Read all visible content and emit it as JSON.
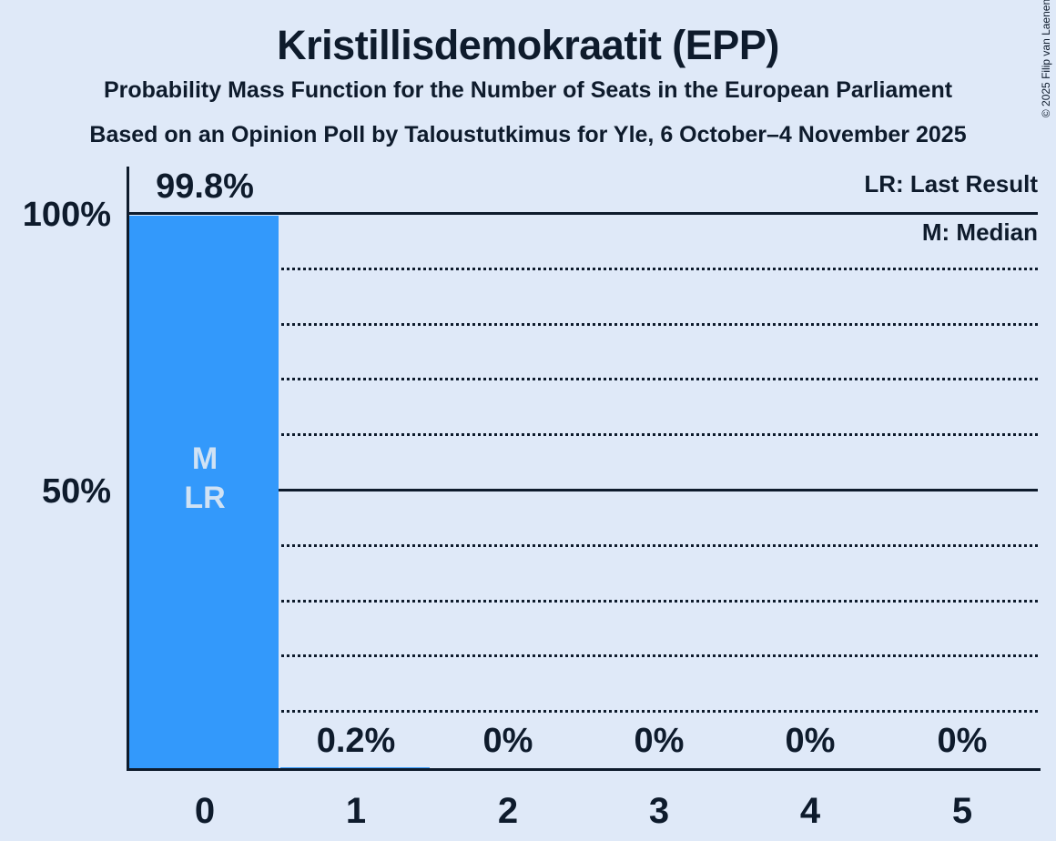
{
  "copyright": "© 2025 Filip van Laenen",
  "colors": {
    "background": "#dfe9f8",
    "bar": "#3399fb",
    "text": "#0e1b2c",
    "bar_annotation_text": "#d0e2f4"
  },
  "chart_data": {
    "type": "bar",
    "title": "Kristillisdemokraatit (EPP)",
    "subtitle": "Probability Mass Function for the Number of Seats in the European Parliament",
    "source": "Based on an Opinion Poll by Taloustutkimus for Yle, 6 October–4 November 2025",
    "categories": [
      "0",
      "1",
      "2",
      "3",
      "4",
      "5"
    ],
    "values": [
      99.8,
      0.2,
      0,
      0,
      0,
      0
    ],
    "value_labels": [
      "99.8%",
      "0.2%",
      "0%",
      "0%",
      "0%",
      "0%"
    ],
    "ylim": [
      0,
      100
    ],
    "ytick_values": [
      100,
      50
    ],
    "ytick_labels": [
      "100%",
      "50%"
    ],
    "gridlines": {
      "dotted_step": 10,
      "solid_at": [
        50,
        100
      ],
      "orientation": "horizontal"
    },
    "legend_entries": [
      "LR: Last Result",
      "M: Median"
    ],
    "legend_position": "top-right",
    "bar_annotations": [
      {
        "category_index": 0,
        "lines": [
          "M",
          "LR"
        ]
      }
    ]
  }
}
